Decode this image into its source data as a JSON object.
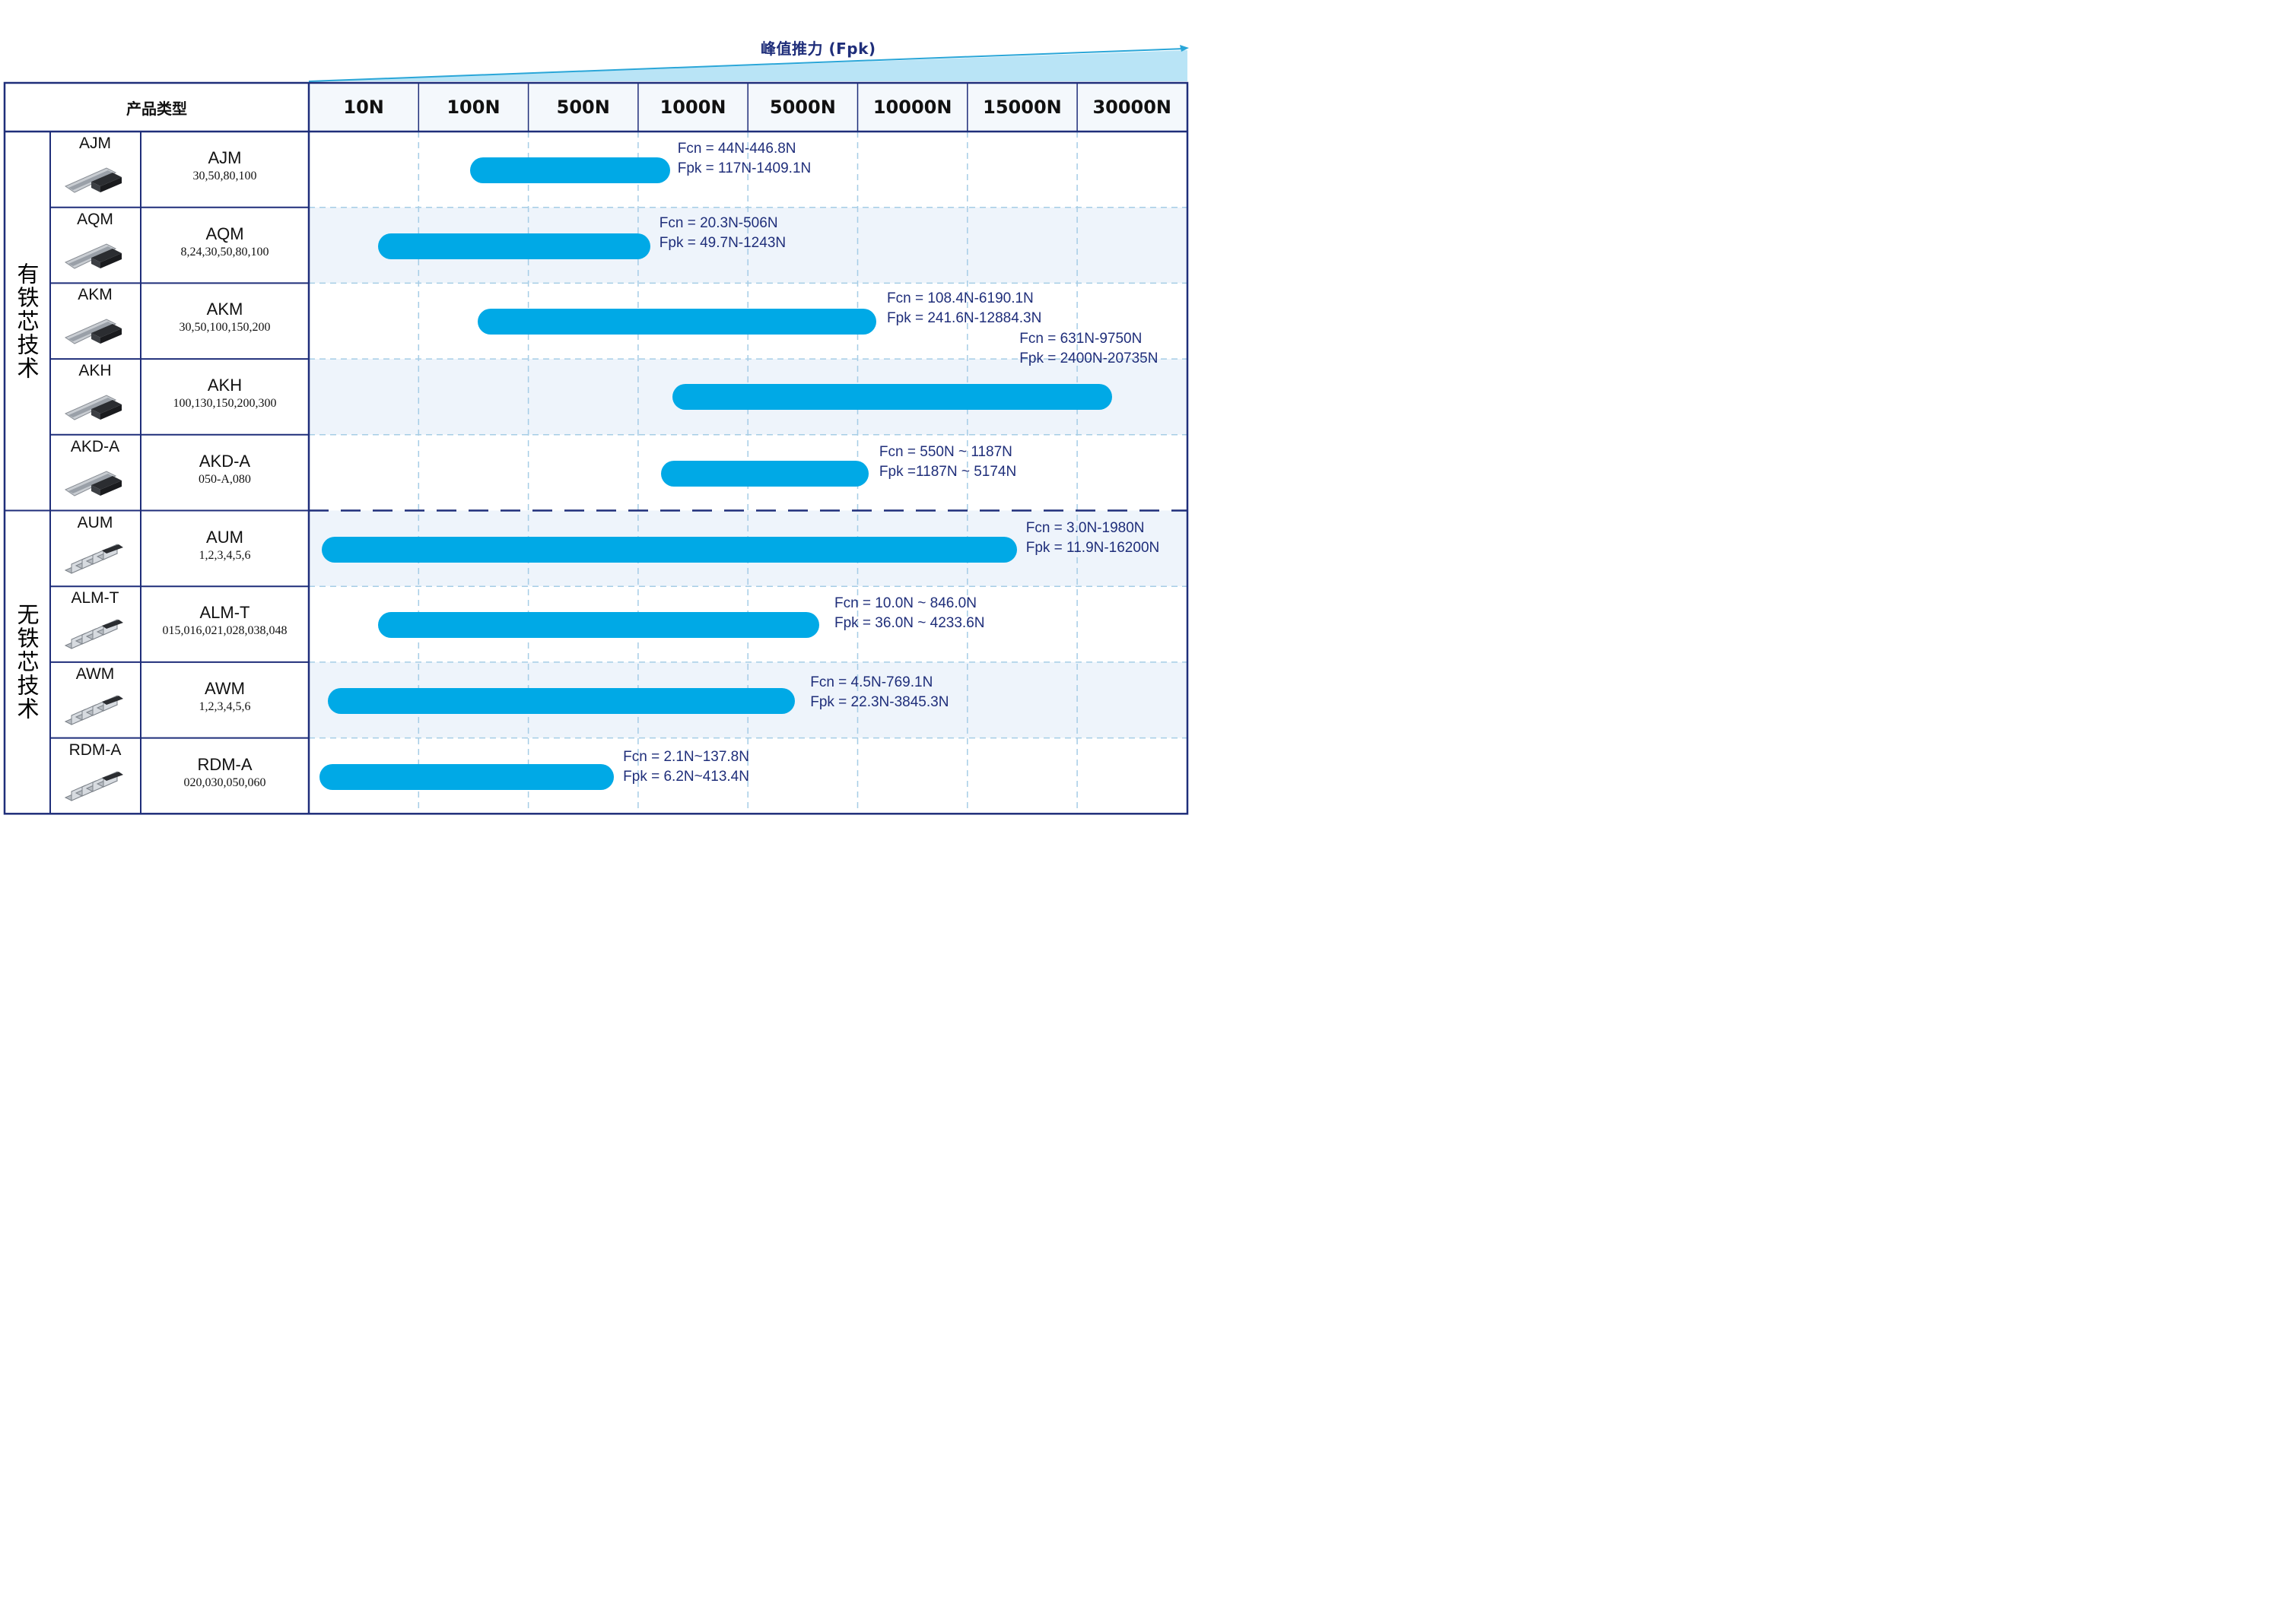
{
  "axis_title": "峰值推力 (Fpk)",
  "header": {
    "product_type": "产品类型"
  },
  "colors": {
    "bar": "#00a9e6",
    "border": "#1f2e7a",
    "note_text": "#1f2e7a",
    "band": "#eef4fb",
    "grid": "#a6cde6"
  },
  "groups": [
    {
      "label": "有铁芯技术"
    },
    {
      "label": "无铁芯技术"
    }
  ],
  "chart_data": {
    "type": "range-bar",
    "title": "峰值推力 (Fpk)",
    "xlabel": "峰值推力 (Fpk)",
    "ylabel": "产品类型",
    "x_categories": [
      "10N",
      "100N",
      "500N",
      "1000N",
      "5000N",
      "10000N",
      "15000N",
      "30000N"
    ],
    "rows": [
      {
        "group": "有铁芯技术",
        "series": "AJM",
        "model": "AJM",
        "sizes": "30,50,80,100",
        "fcn": "Fcn = 44N-446.8N",
        "fpk": "Fpk = 117N-1409.1N",
        "start_index": 1.47,
        "end_index": 3.29
      },
      {
        "group": "有铁芯技术",
        "series": "AQM",
        "model": "AQM",
        "sizes": "8,24,30,50,80,100",
        "fcn": "Fcn = 20.3N-506N",
        "fpk": "Fpk = 49.7N-1243N",
        "start_index": 0.63,
        "end_index": 3.11
      },
      {
        "group": "有铁芯技术",
        "series": "AKM",
        "model": "AKM",
        "sizes": "30,50,100,150,200",
        "fcn": "Fcn = 108.4N-6190.1N",
        "fpk": "Fpk = 241.6N-12884.3N",
        "start_index": 1.54,
        "end_index": 5.17
      },
      {
        "group": "有铁芯技术",
        "series": "AKH",
        "model": "AKH",
        "sizes": "100,130,150,200,300",
        "fcn": "Fcn = 631N-9750N",
        "fpk": "Fpk = 2400N-20735N",
        "start_index": 3.31,
        "end_index": 7.32
      },
      {
        "group": "有铁芯技术",
        "series": "AKD-A",
        "model": "AKD-A",
        "sizes": "050-A,080",
        "fcn": "Fcn = 550N ~ 1187N",
        "fpk": "Fpk =1187N ~ 5174N",
        "start_index": 3.21,
        "end_index": 5.1
      },
      {
        "group": "无铁芯技术",
        "series": "AUM",
        "model": "AUM",
        "sizes": "1,2,3,4,5,6",
        "fcn": "Fcn = 3.0N-1980N",
        "fpk": "Fpk = 11.9N-16200N",
        "start_index": 0.12,
        "end_index": 6.45
      },
      {
        "group": "无铁芯技术",
        "series": "ALM-T",
        "model": "ALM-T",
        "sizes": "015,016,021,028,038,048",
        "fcn": "Fcn = 10.0N ~ 846.0N",
        "fpk": "Fpk = 36.0N ~ 4233.6N",
        "start_index": 0.63,
        "end_index": 4.65
      },
      {
        "group": "无铁芯技术",
        "series": "AWM",
        "model": "AWM",
        "sizes": "1,2,3,4,5,6",
        "fcn": "Fcn = 4.5N-769.1N",
        "fpk": "Fpk = 22.3N-3845.3N",
        "start_index": 0.17,
        "end_index": 4.43
      },
      {
        "group": "无铁芯技术",
        "series": "RDM-A",
        "model": "RDM-A",
        "sizes": "020,030,050,060",
        "fcn": "Fcn = 2.1N~137.8N",
        "fpk": "Fpk = 6.2N~413.4N",
        "start_index": 0.1,
        "end_index": 2.78
      }
    ]
  }
}
